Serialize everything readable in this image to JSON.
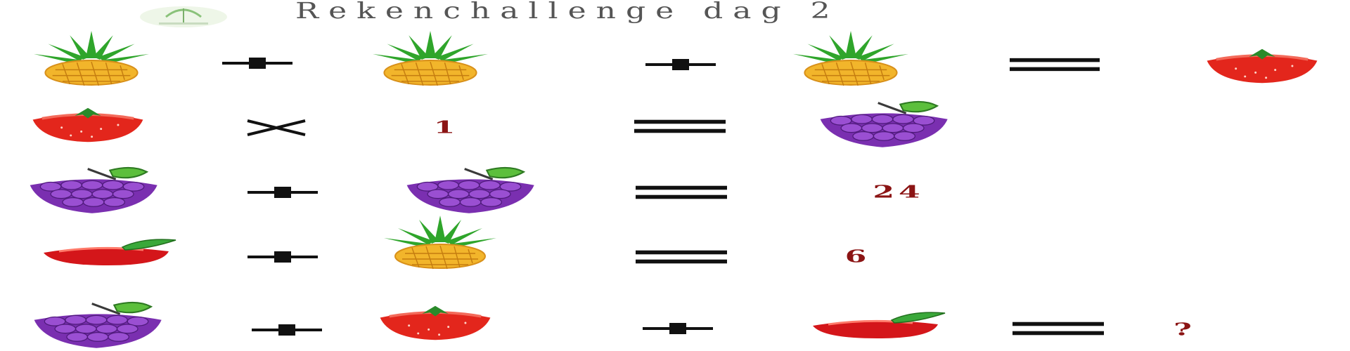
{
  "title": "Rekenchallenge dag 2",
  "icons": {
    "pineapple": "pineapple-icon",
    "strawberry": "strawberry-icon",
    "grapes": "grapes-icon",
    "apple": "apple-icon"
  },
  "operators": {
    "plus": "+",
    "times": "×",
    "equals": "="
  },
  "rows": [
    {
      "tokens": [
        "pineapple",
        "+",
        "pineapple",
        "+",
        "pineapple",
        "=",
        "strawberry"
      ]
    },
    {
      "tokens": [
        "strawberry",
        "×",
        "1",
        "=",
        "grapes"
      ]
    },
    {
      "tokens": [
        "grapes",
        "+",
        "grapes",
        "=",
        "24"
      ]
    },
    {
      "tokens": [
        "apple",
        "+",
        "pineapple",
        "=",
        "6"
      ]
    },
    {
      "tokens": [
        "grapes",
        "+",
        "strawberry",
        "+",
        "apple",
        "=",
        "?"
      ]
    }
  ],
  "row1_num_1": "1",
  "row2_result": "24",
  "row3_result": "6",
  "row4_answer": "?",
  "colors": {
    "number": "#8b1414",
    "grape": "#7a2fb0",
    "strawberry": "#e3261c",
    "pineapple_body": "#f2b52b",
    "pineapple_leaves": "#2fa52b"
  }
}
